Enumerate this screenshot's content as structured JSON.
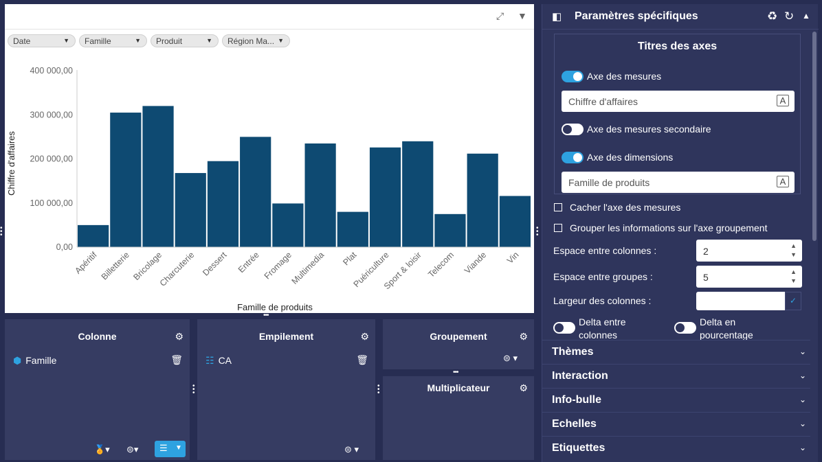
{
  "filters": [
    {
      "label": "Date"
    },
    {
      "label": "Famille"
    },
    {
      "label": "Produit"
    },
    {
      "label": "Région Ma..."
    }
  ],
  "chart_data": {
    "type": "bar",
    "categories": [
      "Apéritif",
      "Billetterie",
      "Bricolage",
      "Charcuterie",
      "Dessert",
      "Entrée",
      "Fromage",
      "Multimedia",
      "Plat",
      "Puériculture",
      "Sport & loisir",
      "Telecom",
      "Viande",
      "Vin"
    ],
    "values": [
      50000,
      305000,
      320000,
      168000,
      195000,
      250000,
      99000,
      235000,
      80000,
      226000,
      240000,
      75000,
      212000,
      116000
    ],
    "ylim": [
      0,
      400000
    ],
    "yticks": [
      "0,00",
      "100 000,00",
      "200 000,00",
      "300 000,00",
      "400 000,00"
    ],
    "xlabel": "Famille de produits",
    "ylabel": "Chiffre d'affaires",
    "color": "#0e4a72"
  },
  "zones": {
    "colonne": {
      "title": "Colonne",
      "item": "Famille"
    },
    "empilement": {
      "title": "Empilement",
      "item": "CA"
    },
    "groupement": {
      "title": "Groupement"
    },
    "multiplicateur": {
      "title": "Multiplicateur"
    }
  },
  "side": {
    "title": "Paramètres spécifiques",
    "axes_title": "Titres des axes",
    "axe_mesures": "Axe des mesures",
    "axe_mesures_value": "Chiffre d'affaires",
    "axe_mesures_secondaire": "Axe des mesures secondaire",
    "axe_dimensions": "Axe des dimensions",
    "axe_dimensions_value": "Famille de produits",
    "cacher_axe": "Cacher l'axe des mesures",
    "grouper_infos": "Grouper les informations sur l'axe groupement",
    "espace_colonnes": "Espace entre colonnes :",
    "espace_colonnes_value": "2",
    "espace_groupes": "Espace entre groupes :",
    "espace_groupes_value": "5",
    "largeur_colonnes": "Largeur des colonnes :",
    "delta_colonnes_1": "Delta entre",
    "delta_colonnes_2": "colonnes",
    "delta_pourcentage_1": "Delta en",
    "delta_pourcentage_2": "pourcentage",
    "sections": [
      "Thèmes",
      "Interaction",
      "Info-bulle",
      "Echelles",
      "Etiquettes"
    ]
  }
}
